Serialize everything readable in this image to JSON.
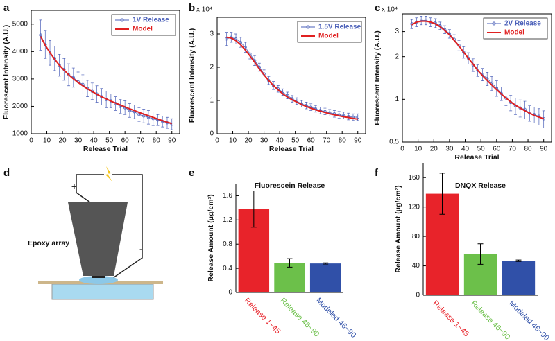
{
  "chart_data": [
    {
      "type": "line",
      "panel": "a",
      "xlabel": "Release Trial",
      "ylabel": "Fluorescent Intensity (A.U.)",
      "x": [
        6,
        9,
        12,
        15,
        18,
        21,
        24,
        27,
        30,
        33,
        36,
        39,
        42,
        45,
        48,
        51,
        54,
        57,
        60,
        63,
        66,
        69,
        72,
        75,
        78,
        81,
        84,
        87,
        90
      ],
      "series": [
        {
          "name": "1V Release",
          "color": "#4a5fb8",
          "values": [
            4600,
            4250,
            3950,
            3750,
            3500,
            3350,
            3150,
            3050,
            2900,
            2800,
            2650,
            2550,
            2450,
            2350,
            2250,
            2200,
            2100,
            2000,
            1950,
            1850,
            1800,
            1700,
            1650,
            1600,
            1550,
            1500,
            1450,
            1400,
            1350
          ],
          "errors": [
            550,
            500,
            450,
            450,
            400,
            400,
            400,
            350,
            350,
            350,
            300,
            300,
            300,
            300,
            300,
            250,
            250,
            250,
            250,
            250,
            250,
            250,
            250,
            250,
            250,
            200,
            200,
            200,
            200
          ]
        },
        {
          "name": "Model",
          "color": "#e02020",
          "values": [
            4550,
            4230,
            3960,
            3720,
            3500,
            3320,
            3150,
            3000,
            2870,
            2750,
            2640,
            2540,
            2440,
            2350,
            2270,
            2190,
            2120,
            2050,
            1980,
            1910,
            1850,
            1780,
            1720,
            1660,
            1600,
            1540,
            1480,
            1420,
            1370
          ]
        }
      ],
      "xlim": [
        0,
        95
      ],
      "xticks": [
        0,
        10,
        20,
        30,
        40,
        50,
        60,
        70,
        80,
        90
      ],
      "ylim": [
        1000,
        5500
      ],
      "yticks": [
        1000,
        2000,
        3000,
        4000,
        5000
      ],
      "legend": "upper right"
    },
    {
      "type": "line",
      "panel": "b",
      "xlabel": "Release Trial",
      "ylabel": "Fluorescent Intensity (A.U.)",
      "y_multiplier": "x 10⁴",
      "x": [
        6,
        9,
        12,
        15,
        18,
        21,
        24,
        27,
        30,
        33,
        36,
        39,
        42,
        45,
        48,
        51,
        54,
        57,
        60,
        63,
        66,
        69,
        72,
        75,
        78,
        81,
        84,
        87,
        90
      ],
      "series": [
        {
          "name": "1.5V Release",
          "color": "#4a5fb8",
          "values": [
            2.85,
            2.9,
            2.85,
            2.75,
            2.6,
            2.4,
            2.2,
            2.0,
            1.8,
            1.6,
            1.45,
            1.35,
            1.25,
            1.15,
            1.05,
            0.98,
            0.9,
            0.85,
            0.8,
            0.75,
            0.7,
            0.67,
            0.63,
            0.6,
            0.57,
            0.55,
            0.52,
            0.5,
            0.5
          ],
          "errors": [
            0.2,
            0.15,
            0.15,
            0.15,
            0.15,
            0.15,
            0.15,
            0.12,
            0.12,
            0.12,
            0.12,
            0.1,
            0.1,
            0.1,
            0.1,
            0.1,
            0.1,
            0.1,
            0.1,
            0.1,
            0.1,
            0.1,
            0.1,
            0.1,
            0.1,
            0.1,
            0.1,
            0.1,
            0.1
          ]
        },
        {
          "name": "Model",
          "color": "#e02020",
          "values": [
            2.9,
            2.88,
            2.8,
            2.68,
            2.52,
            2.34,
            2.15,
            1.95,
            1.77,
            1.6,
            1.45,
            1.32,
            1.2,
            1.1,
            1.02,
            0.95,
            0.88,
            0.82,
            0.77,
            0.72,
            0.68,
            0.64,
            0.6,
            0.57,
            0.54,
            0.51,
            0.49,
            0.46,
            0.44
          ]
        }
      ],
      "xlim": [
        0,
        95
      ],
      "xticks": [
        0,
        10,
        20,
        30,
        40,
        50,
        60,
        70,
        80,
        90
      ],
      "ylim": [
        0,
        3.5
      ],
      "yticks": [
        0,
        1,
        2,
        3
      ],
      "legend": "upper right"
    },
    {
      "type": "line",
      "panel": "c",
      "xlabel": "Release Trial",
      "ylabel": "Fluorescent Intensity (A.U.)",
      "y_multiplier": "x 10⁴",
      "yscale": "log",
      "x": [
        6,
        9,
        12,
        15,
        18,
        21,
        24,
        27,
        30,
        33,
        36,
        39,
        42,
        45,
        48,
        51,
        54,
        57,
        60,
        63,
        66,
        69,
        72,
        75,
        78,
        81,
        84,
        87,
        90
      ],
      "series": [
        {
          "name": "2V Release",
          "color": "#4a5fb8",
          "values": [
            3.4,
            3.5,
            3.6,
            3.6,
            3.5,
            3.45,
            3.3,
            3.1,
            2.9,
            2.65,
            2.4,
            2.15,
            1.95,
            1.75,
            1.6,
            1.5,
            1.4,
            1.3,
            1.2,
            1.1,
            1.02,
            0.95,
            0.9,
            0.87,
            0.85,
            0.8,
            0.78,
            0.76,
            0.73
          ],
          "errors": [
            0.25,
            0.25,
            0.25,
            0.25,
            0.25,
            0.25,
            0.2,
            0.2,
            0.2,
            0.2,
            0.2,
            0.2,
            0.18,
            0.18,
            0.15,
            0.15,
            0.15,
            0.15,
            0.15,
            0.12,
            0.12,
            0.12,
            0.12,
            0.12,
            0.12,
            0.1,
            0.1,
            0.1,
            0.1
          ]
        },
        {
          "name": "Model",
          "color": "#e02020",
          "values": [
            3.35,
            3.5,
            3.55,
            3.55,
            3.5,
            3.4,
            3.25,
            3.05,
            2.85,
            2.6,
            2.38,
            2.15,
            1.95,
            1.77,
            1.6,
            1.47,
            1.36,
            1.26,
            1.17,
            1.09,
            1.02,
            0.96,
            0.91,
            0.87,
            0.83,
            0.8,
            0.77,
            0.75,
            0.73
          ]
        }
      ],
      "xlim": [
        0,
        95
      ],
      "xticks": [
        0,
        10,
        20,
        30,
        40,
        50,
        60,
        70,
        80,
        90
      ],
      "ylim": [
        0.5,
        4
      ],
      "yticks": [
        0.5,
        1,
        2,
        3
      ],
      "legend": "upper right"
    },
    {
      "type": "bar",
      "panel": "e",
      "title": "Fluorescein Release",
      "ylabel": "Release Amount (μg/cm²)",
      "categories": [
        "Release 1~45",
        "Release 46~90",
        "Modeled 46~90"
      ],
      "values": [
        1.38,
        0.49,
        0.48
      ],
      "errors": [
        0.3,
        0.07,
        0.01
      ],
      "colors": [
        "#e8232a",
        "#6cc04a",
        "#3050a8"
      ],
      "ylim": [
        0,
        1.8
      ],
      "yticks": [
        0,
        0.4,
        0.8,
        1.2,
        1.6
      ]
    },
    {
      "type": "bar",
      "panel": "f",
      "title": "DNQX Release",
      "ylabel": "Release Amount (μg/cm²)",
      "categories": [
        "Release 1~45",
        "Release 46~90",
        "Modeled 46~90"
      ],
      "values": [
        138,
        56,
        47
      ],
      "errors": [
        28,
        14,
        1
      ],
      "colors": [
        "#e8232a",
        "#6cc04a",
        "#3050a8"
      ],
      "ylim": [
        0,
        180
      ],
      "yticks": [
        0,
        40,
        80,
        120,
        160
      ]
    }
  ],
  "diagram": {
    "panel": "d",
    "labels": [
      "+",
      "-",
      "Epoxy array"
    ]
  }
}
